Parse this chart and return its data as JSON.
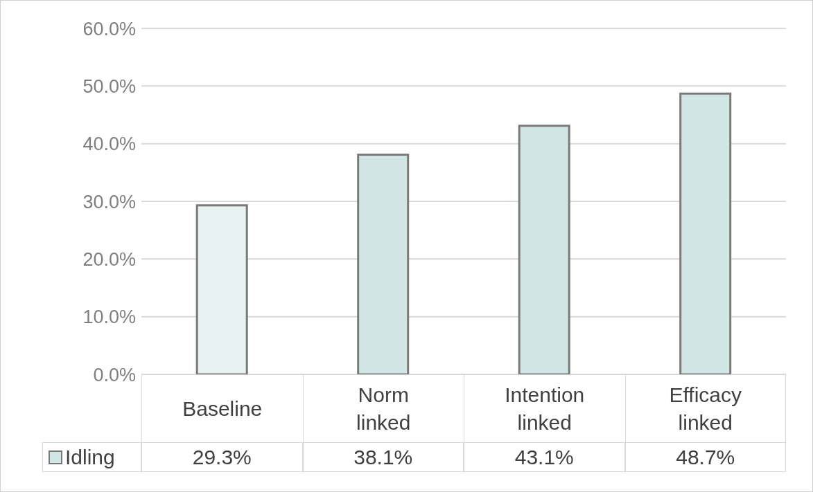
{
  "chart_data": {
    "type": "bar",
    "categories": [
      "Baseline",
      "Norm linked",
      "Intention linked",
      "Efficacy linked"
    ],
    "series": [
      {
        "name": "Idling",
        "color": "#d1e6e4",
        "colors": [
          "#e8f2f0",
          "#d1e6e4",
          "#d1e6e4",
          "#d1e6e4"
        ],
        "values": [
          29.3,
          38.1,
          43.1,
          48.7
        ],
        "value_labels": [
          "29.3%",
          "38.1%",
          "43.1%",
          "48.7%"
        ]
      }
    ],
    "ylim": [
      0,
      60
    ],
    "yticks": [
      {
        "value": 0,
        "label": "0.0%"
      },
      {
        "value": 10,
        "label": "10.0%"
      },
      {
        "value": 20,
        "label": "20.0%"
      },
      {
        "value": 30,
        "label": "30.0%"
      },
      {
        "value": 40,
        "label": "40.0%"
      },
      {
        "value": 50,
        "label": "50.0%"
      },
      {
        "value": 60,
        "label": "60.0%"
      }
    ],
    "grid": "y",
    "legend": "bottom"
  }
}
